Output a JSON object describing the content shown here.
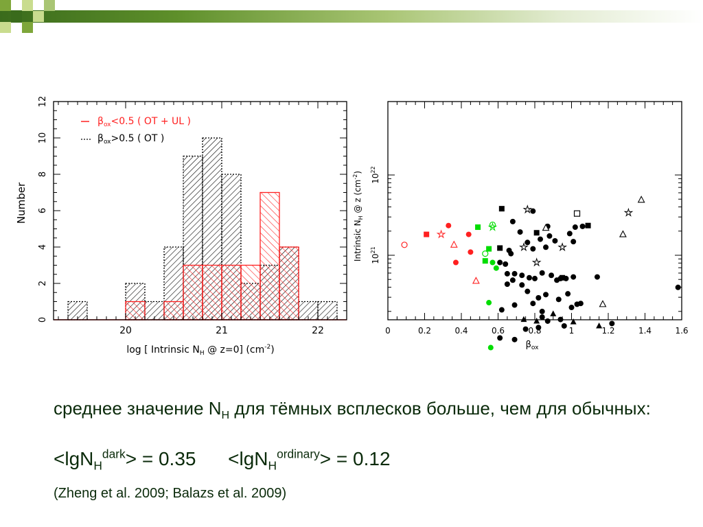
{
  "slide": {
    "line1_a": "среднее значение N",
    "line1_sub": "H",
    "line1_b": " для тёмных всплесков больше, чем для обычных:",
    "f1_a": "<lgN",
    "f1_sub": "H",
    "f1_sup": "dark",
    "f1_b": "> = 0.35",
    "f2_a": "<lgN",
    "f2_sub": "H",
    "f2_sup": "ordinary",
    "f2_b": "> = 0.12",
    "citation": "(Zheng et al. 2009; Balazs et al. 2009)"
  },
  "colors": {
    "red": "#ff2020",
    "green": "#00dd00",
    "black": "#000000",
    "header_dark": "#3a6b1c",
    "header_light": "#a9c574"
  },
  "chart_data": [
    {
      "type": "bar",
      "xlabel_a": "log [ Intrinsic N",
      "xlabel_sub": "H",
      "xlabel_b": " @ z=0] (cm",
      "xlabel_sup": "-2",
      "xlabel_c": ")",
      "ylabel": "Number",
      "xlim": [
        19.25,
        22.3
      ],
      "ylim": [
        0,
        12
      ],
      "xticks": [
        "20",
        "21",
        "22"
      ],
      "yticks": [
        "0",
        "2",
        "4",
        "6",
        "8",
        "10",
        "12"
      ],
      "legend": {
        "position": "top-left",
        "entries": [
          {
            "beta": "β",
            "sub": "ox",
            "text": "<0.5 ( OT + UL )",
            "color": "#ff2020"
          },
          {
            "beta": "β",
            "sub": "ox",
            "text": ">0.5 ( OT )",
            "color": "#000000"
          }
        ]
      },
      "series": [
        {
          "edges": [
            19.4,
            19.6,
            19.8,
            20.0,
            20.2,
            20.4,
            20.6,
            20.8,
            21.0,
            21.2,
            21.4,
            21.6,
            21.8,
            22.0,
            22.2
          ],
          "values": [
            1,
            0,
            0,
            2,
            1,
            4,
            9,
            10,
            8,
            2,
            3,
            4,
            1,
            1
          ],
          "color": "#000000",
          "style": "dashed"
        },
        {
          "edges": [
            19.4,
            19.6,
            19.8,
            20.0,
            20.2,
            20.4,
            20.6,
            20.8,
            21.0,
            21.2,
            21.4,
            21.6,
            21.8,
            22.0,
            22.2
          ],
          "values": [
            0,
            0,
            0,
            1,
            0,
            1,
            3,
            3,
            3,
            3,
            7,
            4,
            0,
            0
          ],
          "color": "#ff2020",
          "style": "solid"
        }
      ]
    },
    {
      "type": "scatter",
      "xlabel": "β",
      "xlabel_sub": "ox",
      "ylabel_a": "Intrinsic N",
      "ylabel_sub": "H",
      "ylabel_b": " @ z (cm",
      "ylabel_sup": "-2",
      "ylabel_c": ")",
      "xlim": [
        0,
        1.6
      ],
      "ylim_log10": [
        20.18,
        21.97
      ],
      "xticks": [
        "0",
        "0.2",
        "0.4",
        "0.6",
        "0.8",
        "1",
        "1.2",
        "1.4",
        "1.6"
      ],
      "yticks": [
        {
          "base": "10",
          "exp": "21",
          "value": 21
        },
        {
          "base": "10",
          "exp": "22",
          "value": 22
        }
      ],
      "points": [
        {
          "x": 0.09,
          "y": 21.13,
          "m": "oc",
          "c": "red"
        },
        {
          "x": 0.21,
          "y": 21.26,
          "m": "sq",
          "c": "red"
        },
        {
          "x": 0.29,
          "y": 21.26,
          "m": "st",
          "c": "red"
        },
        {
          "x": 0.33,
          "y": 21.37,
          "m": "ci",
          "c": "red"
        },
        {
          "x": 0.36,
          "y": 21.13,
          "m": "ot",
          "c": "red"
        },
        {
          "x": 0.44,
          "y": 21.26,
          "m": "ci",
          "c": "red"
        },
        {
          "x": 0.45,
          "y": 21.04,
          "m": "ci",
          "c": "red"
        },
        {
          "x": 0.37,
          "y": 20.91,
          "m": "ci",
          "c": "red"
        },
        {
          "x": 0.48,
          "y": 20.68,
          "m": "ot",
          "c": "red"
        },
        {
          "x": 0.49,
          "y": 21.35,
          "m": "sq",
          "c": "green"
        },
        {
          "x": 0.57,
          "y": 21.38,
          "m": "oc",
          "c": "green"
        },
        {
          "x": 0.57,
          "y": 21.35,
          "m": "st",
          "c": "green"
        },
        {
          "x": 0.55,
          "y": 21.08,
          "m": "sq",
          "c": "green"
        },
        {
          "x": 0.53,
          "y": 21.02,
          "m": "oc",
          "c": "green"
        },
        {
          "x": 0.53,
          "y": 20.93,
          "m": "sq",
          "c": "green"
        },
        {
          "x": 0.57,
          "y": 20.91,
          "m": "ci",
          "c": "green"
        },
        {
          "x": 0.59,
          "y": 20.84,
          "m": "ci",
          "c": "green"
        },
        {
          "x": 0.55,
          "y": 20.41,
          "m": "ci",
          "c": "green"
        },
        {
          "x": 0.56,
          "y": 19.85,
          "m": "ci",
          "c": "green"
        },
        {
          "x": 0.62,
          "y": 21.58,
          "m": "sq",
          "c": "black"
        },
        {
          "x": 0.76,
          "y": 21.57,
          "m": "st",
          "c": "black"
        },
        {
          "x": 0.79,
          "y": 21.55,
          "m": "ci",
          "c": "black"
        },
        {
          "x": 1.03,
          "y": 21.52,
          "m": "os",
          "c": "black"
        },
        {
          "x": 1.38,
          "y": 21.69,
          "m": "ot",
          "c": "black"
        },
        {
          "x": 1.31,
          "y": 21.53,
          "m": "st",
          "c": "black"
        },
        {
          "x": 1.28,
          "y": 21.26,
          "m": "ot",
          "c": "black"
        },
        {
          "x": 1.09,
          "y": 21.37,
          "m": "sq",
          "c": "black"
        },
        {
          "x": 1.06,
          "y": 21.36,
          "m": "ci",
          "c": "black"
        },
        {
          "x": 1.02,
          "y": 21.35,
          "m": "ci",
          "c": "black"
        },
        {
          "x": 0.87,
          "y": 21.36,
          "m": "ci",
          "c": "black"
        },
        {
          "x": 0.86,
          "y": 21.34,
          "m": "ot",
          "c": "black"
        },
        {
          "x": 0.81,
          "y": 21.28,
          "m": "sq",
          "c": "black"
        },
        {
          "x": 0.68,
          "y": 21.42,
          "m": "ci",
          "c": "black"
        },
        {
          "x": 0.72,
          "y": 21.29,
          "m": "ci",
          "c": "black"
        },
        {
          "x": 0.76,
          "y": 21.16,
          "m": "ci",
          "c": "black"
        },
        {
          "x": 0.79,
          "y": 21.08,
          "m": "ci",
          "c": "black"
        },
        {
          "x": 0.83,
          "y": 21.2,
          "m": "ci",
          "c": "black"
        },
        {
          "x": 0.86,
          "y": 21.1,
          "m": "ci",
          "c": "black"
        },
        {
          "x": 0.88,
          "y": 21.24,
          "m": "ci",
          "c": "black"
        },
        {
          "x": 0.91,
          "y": 21.18,
          "m": "ci",
          "c": "black"
        },
        {
          "x": 0.95,
          "y": 21.1,
          "m": "st",
          "c": "black"
        },
        {
          "x": 0.99,
          "y": 21.27,
          "m": "ci",
          "c": "black"
        },
        {
          "x": 1.01,
          "y": 21.17,
          "m": "ci",
          "c": "black"
        },
        {
          "x": 0.74,
          "y": 21.1,
          "m": "st",
          "c": "black"
        },
        {
          "x": 0.61,
          "y": 21.09,
          "m": "sq",
          "c": "black"
        },
        {
          "x": 0.66,
          "y": 21.06,
          "m": "ci",
          "c": "black"
        },
        {
          "x": 0.67,
          "y": 21.02,
          "m": "ci",
          "c": "black"
        },
        {
          "x": 0.81,
          "y": 20.91,
          "m": "st",
          "c": "black"
        },
        {
          "x": 0.61,
          "y": 20.91,
          "m": "ci",
          "c": "black"
        },
        {
          "x": 0.64,
          "y": 20.89,
          "m": "ci",
          "c": "black"
        },
        {
          "x": 0.65,
          "y": 20.77,
          "m": "ci",
          "c": "black"
        },
        {
          "x": 0.69,
          "y": 20.77,
          "m": "ci",
          "c": "black"
        },
        {
          "x": 0.73,
          "y": 20.75,
          "m": "ci",
          "c": "black"
        },
        {
          "x": 0.68,
          "y": 20.69,
          "m": "ci",
          "c": "black"
        },
        {
          "x": 0.65,
          "y": 20.64,
          "m": "ci",
          "c": "black"
        },
        {
          "x": 0.73,
          "y": 20.63,
          "m": "ci",
          "c": "black"
        },
        {
          "x": 0.77,
          "y": 20.72,
          "m": "ci",
          "c": "black"
        },
        {
          "x": 0.8,
          "y": 20.71,
          "m": "ci",
          "c": "black"
        },
        {
          "x": 0.84,
          "y": 20.78,
          "m": "ci",
          "c": "black"
        },
        {
          "x": 0.89,
          "y": 20.75,
          "m": "ci",
          "c": "black"
        },
        {
          "x": 0.92,
          "y": 20.69,
          "m": "ci",
          "c": "black"
        },
        {
          "x": 0.94,
          "y": 20.71,
          "m": "ci",
          "c": "black"
        },
        {
          "x": 0.97,
          "y": 20.71,
          "m": "ci",
          "c": "black"
        },
        {
          "x": 0.95,
          "y": 20.72,
          "m": "sq",
          "c": "black"
        },
        {
          "x": 1.01,
          "y": 20.73,
          "m": "ci",
          "c": "black"
        },
        {
          "x": 1.14,
          "y": 20.73,
          "m": "ci",
          "c": "black"
        },
        {
          "x": 1.58,
          "y": 20.6,
          "m": "ci",
          "c": "black"
        },
        {
          "x": 0.76,
          "y": 20.55,
          "m": "ci",
          "c": "black"
        },
        {
          "x": 0.82,
          "y": 20.47,
          "m": "ci",
          "c": "black"
        },
        {
          "x": 0.86,
          "y": 20.51,
          "m": "ci",
          "c": "black"
        },
        {
          "x": 0.93,
          "y": 20.45,
          "m": "ci",
          "c": "black"
        },
        {
          "x": 0.98,
          "y": 20.52,
          "m": "ci",
          "c": "black"
        },
        {
          "x": 0.69,
          "y": 20.38,
          "m": "ci",
          "c": "black"
        },
        {
          "x": 0.79,
          "y": 20.4,
          "m": "ci",
          "c": "black"
        },
        {
          "x": 1.0,
          "y": 20.35,
          "m": "ci",
          "c": "black"
        },
        {
          "x": 1.03,
          "y": 20.39,
          "m": "ci",
          "c": "black"
        },
        {
          "x": 1.05,
          "y": 20.4,
          "m": "ci",
          "c": "black"
        },
        {
          "x": 1.17,
          "y": 20.39,
          "m": "ot",
          "c": "black"
        },
        {
          "x": 0.84,
          "y": 20.3,
          "m": "ci",
          "c": "black"
        },
        {
          "x": 0.62,
          "y": 20.32,
          "m": "ci",
          "c": "black"
        },
        {
          "x": 0.9,
          "y": 20.27,
          "m": "tr",
          "c": "black"
        },
        {
          "x": 0.74,
          "y": 20.2,
          "m": "tr",
          "c": "black"
        },
        {
          "x": 0.81,
          "y": 20.18,
          "m": "tr",
          "c": "black"
        },
        {
          "x": 0.87,
          "y": 20.18,
          "m": "ci",
          "c": "black"
        },
        {
          "x": 0.94,
          "y": 20.2,
          "m": "ci",
          "c": "black"
        },
        {
          "x": 0.96,
          "y": 20.12,
          "m": "ci",
          "c": "black"
        },
        {
          "x": 1.01,
          "y": 20.17,
          "m": "tr",
          "c": "black"
        },
        {
          "x": 1.15,
          "y": 20.12,
          "m": "tr",
          "c": "black"
        },
        {
          "x": 1.22,
          "y": 20.15,
          "m": "ci",
          "c": "black"
        },
        {
          "x": 0.75,
          "y": 20.08,
          "m": "ci",
          "c": "black"
        },
        {
          "x": 0.82,
          "y": 20.1,
          "m": "ci",
          "c": "black"
        },
        {
          "x": 0.84,
          "y": 20.23,
          "m": "ci",
          "c": "black"
        },
        {
          "x": 0.69,
          "y": 19.95,
          "m": "ci",
          "c": "black"
        },
        {
          "x": 0.61,
          "y": 19.97,
          "m": "ci",
          "c": "black"
        },
        {
          "x": 0.74,
          "y": 19.47,
          "m": "tr",
          "c": "black"
        },
        {
          "x": 0.76,
          "y": 19.35,
          "m": "ci",
          "c": "black"
        },
        {
          "x": 0.85,
          "y": 19.44,
          "m": "ci",
          "c": "black"
        }
      ]
    }
  ]
}
